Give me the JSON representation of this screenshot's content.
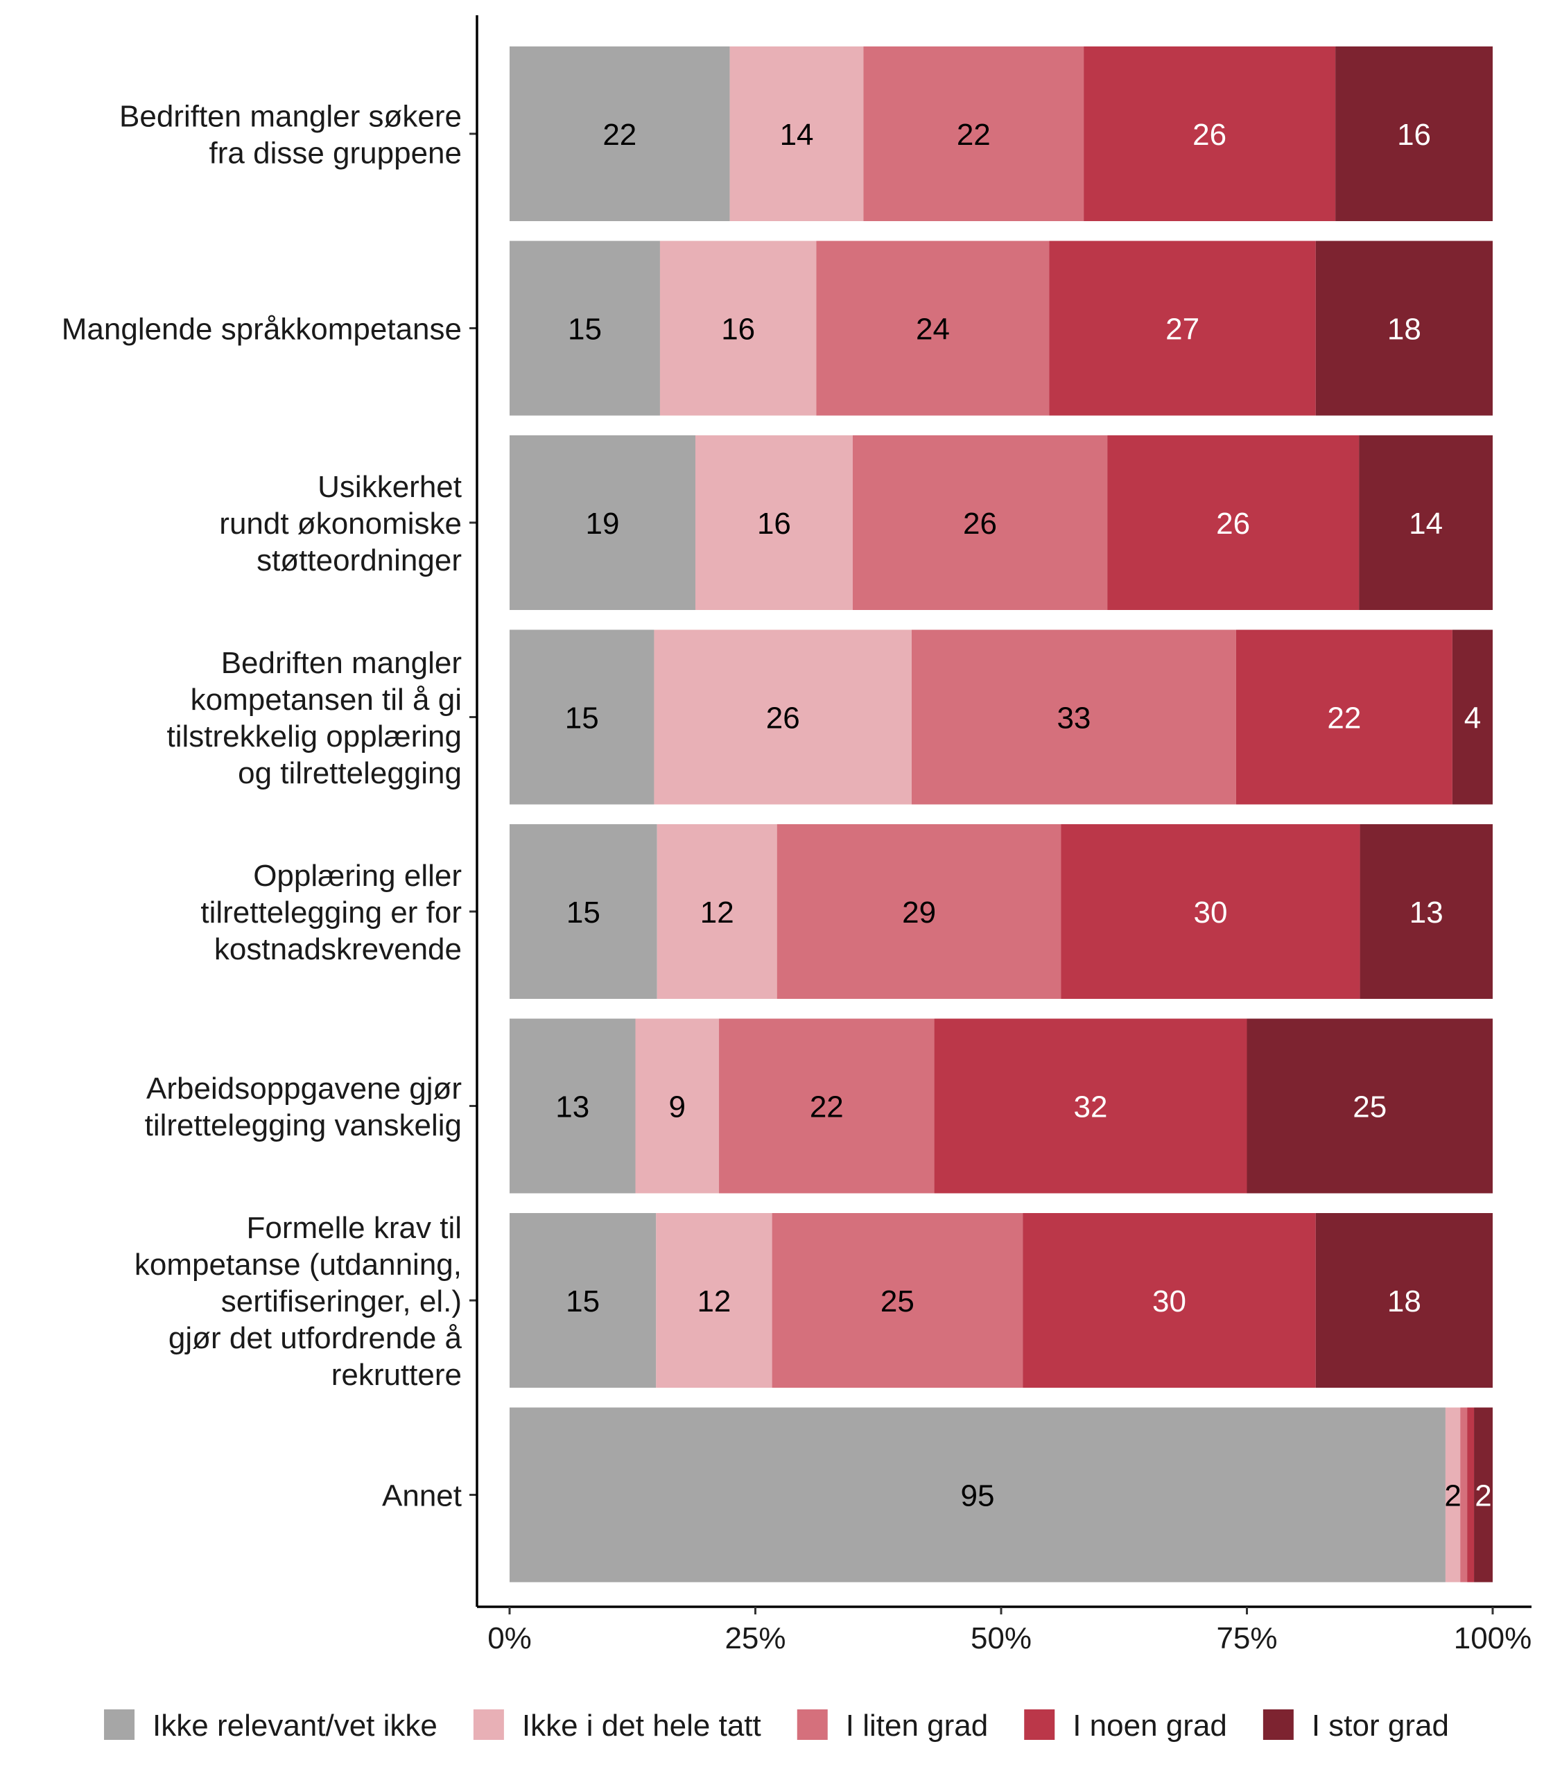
{
  "chart_data": {
    "type": "bar",
    "orientation": "horizontal",
    "stacked": true,
    "percent": true,
    "title": "",
    "xlabel": "",
    "ylabel": "",
    "xlim": [
      0,
      100
    ],
    "x_ticks": [
      0,
      25,
      50,
      75,
      100
    ],
    "x_tick_labels": [
      "0%",
      "25%",
      "50%",
      "75%",
      "100%"
    ],
    "grid": false,
    "legend_position": "bottom",
    "categories": [
      "Bedriften mangler søkere\nfra disse gruppene",
      "Manglende språkkompetanse",
      "Usikkerhet\nrundt økonomiske\nstøtteordninger",
      "Bedriften mangler\nkompetansen til å gi\ntilstrekkelig opplæring\nog tilrettelegging",
      "Opplæring eller\ntilrettelegging er for\nkostnadskrevende",
      "Arbeidsoppgavene gjør\ntilrettelegging vanskelig",
      "Formelle krav til\nkompetanse (utdanning,\nsertifiseringer, el.)\ngjør det utfordrende å\nrekruttere",
      "Annet"
    ],
    "series": [
      {
        "name": "Ikke relevant/vet ikke",
        "color": "#a6a6a6",
        "label_color": "#000000",
        "values": [
          22.4,
          15.3,
          18.9,
          14.7,
          15.0,
          12.8,
          14.9,
          95.2
        ]
      },
      {
        "name": "Ikke i det hele tatt",
        "color": "#e8b0b6",
        "label_color": "#000000",
        "values": [
          13.6,
          15.9,
          16.0,
          26.2,
          12.2,
          8.5,
          11.8,
          1.5
        ]
      },
      {
        "name": "I liten grad",
        "color": "#d5707c",
        "label_color": "#000000",
        "values": [
          22.4,
          23.7,
          25.9,
          33.0,
          28.9,
          21.9,
          25.5,
          0.7
        ]
      },
      {
        "name": "I noen grad",
        "color": "#bb3749",
        "label_color": "#ffffff",
        "values": [
          25.6,
          27.1,
          25.6,
          22.0,
          30.4,
          31.8,
          29.8,
          0.7
        ]
      },
      {
        "name": "I stor grad",
        "color": "#7d2330",
        "label_color": "#ffffff",
        "values": [
          16.0,
          18.0,
          13.6,
          4.1,
          13.5,
          25.0,
          18.0,
          1.9
        ]
      }
    ],
    "data_labels": [
      [
        "22",
        "14",
        "22",
        "26",
        "16"
      ],
      [
        "15",
        "16",
        "24",
        "27",
        "18"
      ],
      [
        "19",
        "16",
        "26",
        "26",
        "14"
      ],
      [
        "15",
        "26",
        "33",
        "22",
        "4"
      ],
      [
        "15",
        "12",
        "29",
        "30",
        "13"
      ],
      [
        "13",
        "9",
        "22",
        "32",
        "25"
      ],
      [
        "15",
        "12",
        "25",
        "30",
        "18"
      ],
      [
        "95",
        "2",
        "",
        "",
        "2"
      ]
    ]
  }
}
